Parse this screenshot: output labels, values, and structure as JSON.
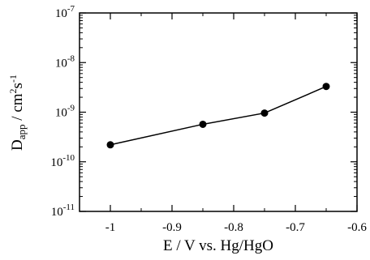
{
  "chart_data": {
    "type": "line",
    "x": [
      -1.0,
      -0.85,
      -0.75,
      -0.65
    ],
    "series": [
      {
        "values": [
          2.2e-10,
          5.7e-10,
          9.6e-10,
          3.3e-09
        ]
      }
    ],
    "xlim": [
      -1.05,
      -0.6
    ],
    "ylim": [
      1e-11,
      1e-07
    ],
    "yscale": "log",
    "x_ticks": [
      -1,
      -0.9,
      -0.8,
      -0.7,
      -0.6
    ],
    "x_tick_labels": [
      "-1",
      "-0.9",
      "-0.8",
      "-0.7",
      "-0.6"
    ],
    "y_ticks": [
      1e-11,
      1e-10,
      1e-09,
      1e-08,
      1e-07
    ],
    "y_tick_labels": [
      {
        "base": "10",
        "exp": "-11"
      },
      {
        "base": "10",
        "exp": "-10"
      },
      {
        "base": "10",
        "exp": "-9"
      },
      {
        "base": "10",
        "exp": "-8"
      },
      {
        "base": "10",
        "exp": "-7"
      }
    ],
    "xlabel": "E / V vs. Hg/HgO",
    "ylabel": {
      "main": "D",
      "sub": "app",
      "rest": " / cm",
      "sup1": "2",
      "mid": "s",
      "sup2": "-1"
    },
    "grid": false,
    "marker": "filled-circle",
    "line_color": "#000000"
  }
}
